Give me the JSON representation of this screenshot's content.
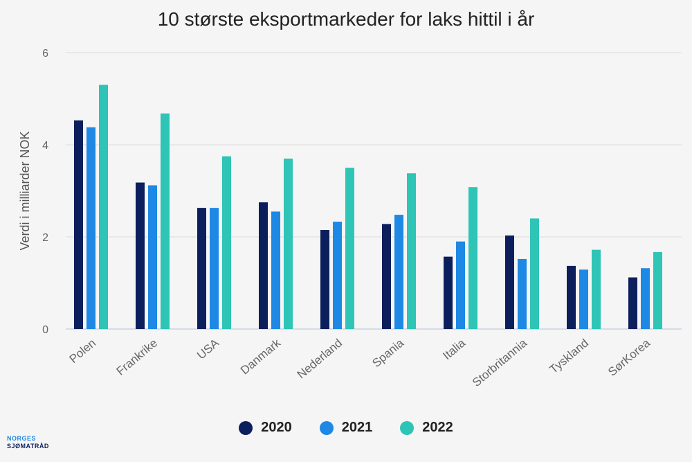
{
  "chart_data": {
    "type": "bar",
    "title": "10 største eksportmarkeder for laks hittil i år",
    "ylabel": "Verdi i milliarder NOK",
    "xlabel": "",
    "ylim": [
      0,
      6
    ],
    "yticks": [
      0,
      2,
      4,
      6
    ],
    "grid": true,
    "legend_position": "bottom",
    "categories": [
      "Polen",
      "Frankrike",
      "USA",
      "Danmark",
      "Nederland",
      "Spania",
      "Italia",
      "Storbritannia",
      "Tyskland",
      "SørKorea"
    ],
    "series": [
      {
        "name": "2020",
        "color": "#0b1f5c",
        "values": [
          4.53,
          3.18,
          2.63,
          2.75,
          2.15,
          2.28,
          1.57,
          2.03,
          1.37,
          1.12
        ]
      },
      {
        "name": "2021",
        "color": "#1e88e5",
        "values": [
          4.38,
          3.12,
          2.63,
          2.55,
          2.33,
          2.48,
          1.9,
          1.52,
          1.29,
          1.32
        ]
      },
      {
        "name": "2022",
        "color": "#2ec4b6",
        "values": [
          5.3,
          4.68,
          3.75,
          3.7,
          3.5,
          3.38,
          3.08,
          2.4,
          1.72,
          1.67
        ]
      }
    ]
  },
  "logo": {
    "line1": "NORGES",
    "line2": "SJØMATRÅD"
  }
}
